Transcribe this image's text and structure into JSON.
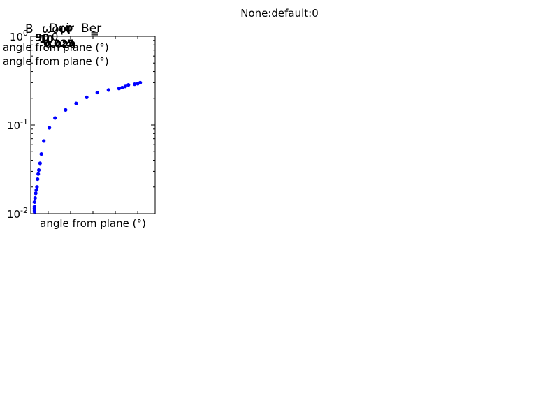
{
  "figure": {
    "suptitle": "None:default:0"
  },
  "chart_data": {
    "type": "scatter",
    "title": "",
    "xlabel": "angle from plane (°)",
    "ylabel": "",
    "yscale": "log",
    "ylim": [
      0.01,
      1
    ],
    "xlim": [
      0,
      1
    ],
    "grid": false,
    "legend": "none",
    "color": "#0000ff",
    "y_tick_labels": [
      {
        "base": "10",
        "exp": "0",
        "value": 1
      },
      {
        "base": "10",
        "exp": "-1",
        "value": 0.1
      },
      {
        "base": "10",
        "exp": "-2",
        "value": 0.01
      }
    ],
    "x_minor_ticks": [
      0.14,
      0.32,
      0.5,
      0.68,
      0.86
    ],
    "overlapping_labels": {
      "top_left_fragments": [
        "B",
        "Dφir",
        "ωoor",
        "Ber",
        "=",
        "90",
        "10",
        "φ",
        "θ",
        "0.025",
        "0.020"
      ],
      "stacked_labels": [
        "angle from plane (°)",
        "angle from plane (°)"
      ]
    },
    "series": [
      {
        "x": [
          0.03,
          0.03,
          0.03,
          0.03,
          0.03,
          0.035,
          0.04,
          0.045,
          0.05,
          0.055,
          0.06,
          0.065,
          0.075,
          0.085,
          0.105,
          0.15,
          0.195,
          0.28,
          0.365,
          0.45,
          0.535,
          0.625,
          0.71,
          0.735,
          0.76,
          0.785,
          0.835,
          0.86,
          0.88
        ],
        "y": [
          0.0105,
          0.011,
          0.0115,
          0.012,
          0.0135,
          0.015,
          0.017,
          0.0185,
          0.02,
          0.0245,
          0.028,
          0.031,
          0.037,
          0.047,
          0.066,
          0.093,
          0.12,
          0.148,
          0.175,
          0.205,
          0.232,
          0.248,
          0.258,
          0.264,
          0.272,
          0.283,
          0.288,
          0.292,
          0.3
        ]
      }
    ]
  }
}
